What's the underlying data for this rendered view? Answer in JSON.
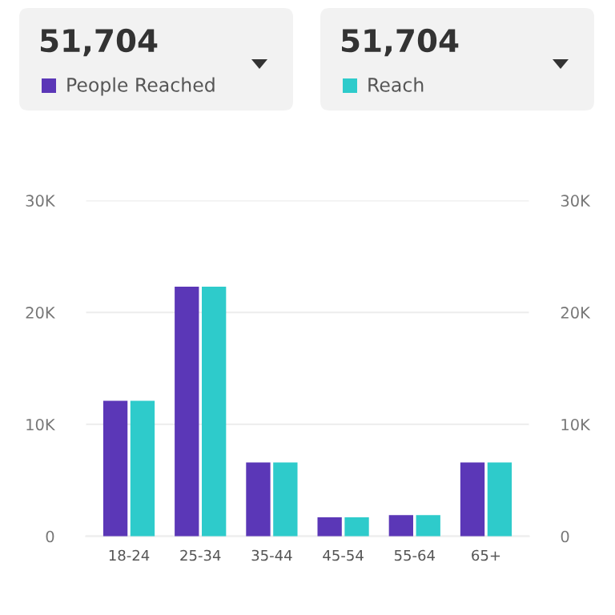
{
  "chart_data": {
    "type": "bar",
    "categories": [
      "18-24",
      "25-34",
      "35-44",
      "45-54",
      "55-64",
      "65+"
    ],
    "series": [
      {
        "name": "People Reached",
        "color": "#5b37b7",
        "values": [
          12100,
          22300,
          6600,
          1700,
          1900,
          6600
        ]
      },
      {
        "name": "Reach",
        "color": "#2ecbcb",
        "values": [
          12100,
          22300,
          6600,
          1700,
          1900,
          6600
        ]
      }
    ],
    "annotations": [
      "51,704",
      "51,704"
    ],
    "ylim": [
      0,
      30000
    ],
    "yticks": [
      0,
      {
        "value": 10000,
        "label": "10K"
      },
      {
        "value": 20000,
        "label": "20K"
      },
      {
        "value": 30000,
        "label": "30K"
      }
    ],
    "y2lim": [
      0,
      30000
    ],
    "y2ticks": [
      0,
      {
        "value": 10000,
        "label": "10K"
      },
      {
        "value": 20000,
        "label": "20K"
      },
      {
        "value": 30000,
        "label": "30K"
      }
    ],
    "grid": "y",
    "legend": "top"
  }
}
